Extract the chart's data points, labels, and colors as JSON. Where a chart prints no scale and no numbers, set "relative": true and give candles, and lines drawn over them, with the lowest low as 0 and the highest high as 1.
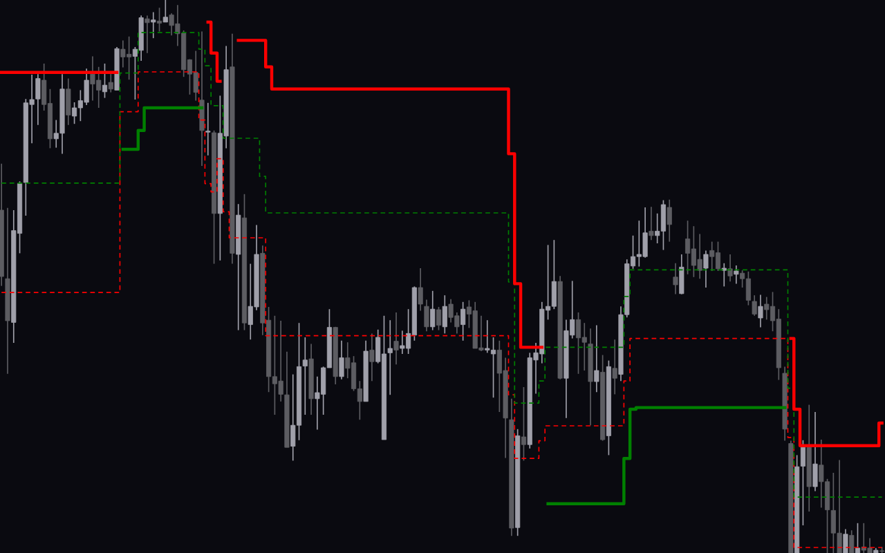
{
  "chart_data": {
    "type": "candlestick",
    "relative": true,
    "grid": false,
    "categories": [
      null,
      null,
      null,
      null,
      null,
      null,
      null,
      null,
      null,
      null,
      null,
      null,
      null,
      null,
      null,
      null,
      null,
      null,
      null,
      null,
      null,
      null,
      null,
      null,
      null,
      null,
      null,
      null,
      null,
      null,
      null,
      null,
      null,
      null,
      null,
      null,
      null,
      null,
      null,
      null,
      null,
      null,
      null,
      null,
      null,
      null,
      null,
      null,
      null,
      null,
      null,
      null,
      null,
      null,
      null,
      null,
      null,
      null,
      null,
      null,
      null,
      null,
      null,
      null,
      null,
      null,
      null,
      null,
      null,
      null,
      null,
      null,
      null,
      null,
      null,
      null,
      null,
      null,
      null,
      null,
      null,
      null,
      null,
      null,
      null,
      null,
      null,
      null,
      null,
      null,
      null,
      null,
      null,
      null,
      null,
      null,
      null,
      null,
      null,
      null,
      null,
      null,
      null,
      null,
      null,
      null,
      null,
      null,
      null,
      null,
      null,
      null,
      null,
      null,
      null,
      null,
      null,
      null,
      null,
      null,
      null,
      null,
      null,
      null,
      null,
      null,
      null,
      null,
      null,
      null,
      null,
      null,
      null,
      null,
      null,
      null,
      null,
      null,
      null,
      null,
      null,
      null,
      null,
      null,
      null,
      null
    ],
    "ohlc": [
      [
        0.62,
        0.704,
        0.483,
        0.5
      ],
      [
        0.496,
        0.624,
        0.324,
        0.42
      ],
      [
        0.417,
        0.62,
        0.38,
        0.583
      ],
      [
        0.578,
        0.672,
        0.542,
        0.668
      ],
      [
        0.67,
        0.821,
        0.61,
        0.814
      ],
      [
        0.811,
        0.865,
        0.741,
        0.82
      ],
      [
        0.821,
        0.866,
        0.774,
        0.858
      ],
      [
        0.855,
        0.885,
        0.8,
        0.811
      ],
      [
        0.813,
        0.839,
        0.732,
        0.749
      ],
      [
        0.749,
        0.783,
        0.733,
        0.759
      ],
      [
        0.759,
        0.866,
        0.722,
        0.839
      ],
      [
        0.839,
        0.858,
        0.774,
        0.792
      ],
      [
        0.79,
        0.815,
        0.776,
        0.805
      ],
      [
        0.805,
        0.837,
        0.781,
        0.818
      ],
      [
        0.815,
        0.876,
        0.81,
        0.855
      ],
      [
        0.866,
        0.898,
        0.818,
        0.848
      ],
      [
        0.855,
        0.879,
        0.805,
        0.837
      ],
      [
        0.834,
        0.885,
        0.823,
        0.846
      ],
      [
        0.851,
        0.866,
        0.833,
        0.839
      ],
      [
        0.837,
        0.915,
        0.837,
        0.912
      ],
      [
        0.911,
        0.927,
        0.878,
        0.897
      ],
      [
        0.902,
        0.934,
        0.856,
        0.897
      ],
      [
        0.898,
        0.915,
        0.82,
        0.911
      ],
      [
        0.909,
        0.972,
        0.89,
        0.968
      ],
      [
        0.966,
        0.972,
        0.904,
        0.959
      ],
      [
        0.96,
        0.978,
        0.931,
        0.964
      ],
      [
        0.962,
        0.986,
        0.943,
        0.958
      ],
      [
        0.96,
        1.0,
        0.96,
        0.969
      ],
      [
        0.973,
        0.976,
        0.936,
        0.954
      ],
      [
        0.957,
        0.991,
        0.917,
        0.939
      ],
      [
        0.94,
        0.945,
        0.861,
        0.874
      ],
      [
        0.892,
        0.893,
        0.829,
        0.866
      ],
      [
        0.869,
        0.908,
        0.818,
        0.833
      ],
      [
        0.819,
        0.943,
        0.7,
        0.764
      ],
      [
        0.763,
        0.814,
        0.719,
        0.761
      ],
      [
        0.76,
        0.764,
        0.523,
        0.614
      ],
      [
        0.614,
        0.827,
        0.529,
        0.759
      ],
      [
        0.754,
        0.917,
        0.732,
        0.874
      ],
      [
        0.879,
        0.939,
        0.523,
        0.542
      ],
      [
        0.54,
        0.631,
        0.403,
        0.611
      ],
      [
        0.606,
        0.649,
        0.403,
        0.416
      ],
      [
        0.413,
        0.523,
        0.386,
        0.446
      ],
      [
        0.445,
        0.593,
        0.439,
        0.54
      ],
      [
        0.542,
        0.556,
        0.394,
        0.416
      ],
      [
        0.421,
        0.445,
        0.291,
        0.319
      ],
      [
        0.319,
        0.429,
        0.25,
        0.306
      ],
      [
        0.311,
        0.42,
        0.274,
        0.287
      ],
      [
        0.286,
        0.364,
        0.191,
        0.191
      ],
      [
        0.193,
        0.323,
        0.167,
        0.231
      ],
      [
        0.231,
        0.416,
        0.204,
        0.337
      ],
      [
        0.338,
        0.39,
        0.25,
        0.349
      ],
      [
        0.351,
        0.378,
        0.25,
        0.279
      ],
      [
        0.279,
        0.319,
        0.223,
        0.29
      ],
      [
        0.287,
        0.337,
        0.25,
        0.335
      ],
      [
        0.335,
        0.441,
        0.335,
        0.408
      ],
      [
        0.408,
        0.409,
        0.305,
        0.319
      ],
      [
        0.319,
        0.384,
        0.314,
        0.353
      ],
      [
        0.353,
        0.381,
        0.316,
        0.334
      ],
      [
        0.344,
        0.356,
        0.293,
        0.297
      ],
      [
        0.297,
        0.311,
        0.241,
        0.274
      ],
      [
        0.274,
        0.384,
        0.274,
        0.365
      ],
      [
        0.367,
        0.397,
        0.311,
        0.346
      ],
      [
        0.346,
        0.404,
        0.343,
        0.39
      ],
      [
        0.205,
        0.429,
        0.205,
        0.36
      ],
      [
        0.362,
        0.421,
        0.286,
        0.37
      ],
      [
        0.383,
        0.435,
        0.341,
        0.367
      ],
      [
        0.37,
        0.402,
        0.36,
        0.375
      ],
      [
        0.37,
        0.441,
        0.36,
        0.397
      ],
      [
        0.394,
        0.482,
        0.384,
        0.48
      ],
      [
        0.48,
        0.515,
        0.438,
        0.45
      ],
      [
        0.446,
        0.458,
        0.401,
        0.409
      ],
      [
        0.409,
        0.474,
        0.403,
        0.441
      ],
      [
        0.44,
        0.445,
        0.403,
        0.412
      ],
      [
        0.409,
        0.466,
        0.397,
        0.446
      ],
      [
        0.45,
        0.459,
        0.417,
        0.426
      ],
      [
        0.429,
        0.435,
        0.397,
        0.409
      ],
      [
        0.413,
        0.454,
        0.384,
        0.441
      ],
      [
        0.445,
        0.457,
        0.407,
        0.432
      ],
      [
        0.438,
        0.454,
        0.37,
        0.37
      ],
      [
        0.371,
        0.429,
        0.365,
        0.367
      ],
      [
        0.367,
        0.421,
        0.362,
        0.37
      ],
      [
        0.36,
        0.39,
        0.281,
        0.367
      ],
      [
        0.367,
        0.384,
        0.255,
        0.325
      ],
      [
        0.33,
        0.353,
        0.172,
        0.244
      ],
      [
        0.241,
        0.279,
        0.031,
        0.045
      ],
      [
        0.046,
        0.224,
        0.031,
        0.212
      ],
      [
        0.21,
        0.3,
        0.167,
        0.196
      ],
      [
        0.196,
        0.362,
        0.189,
        0.353
      ],
      [
        0.349,
        0.38,
        0.288,
        0.362
      ],
      [
        0.36,
        0.454,
        0.343,
        0.441
      ],
      [
        0.439,
        0.557,
        0.422,
        0.446
      ],
      [
        0.446,
        0.566,
        0.441,
        0.491
      ],
      [
        0.491,
        0.501,
        0.314,
        0.316
      ],
      [
        0.316,
        0.422,
        0.244,
        0.402
      ],
      [
        0.394,
        0.492,
        0.388,
        0.422
      ],
      [
        0.422,
        0.435,
        0.324,
        0.389
      ],
      [
        0.39,
        0.416,
        0.33,
        0.381
      ],
      [
        0.378,
        0.406,
        0.231,
        0.31
      ],
      [
        0.31,
        0.412,
        0.291,
        0.33
      ],
      [
        0.327,
        0.358,
        0.203,
        0.205
      ],
      [
        0.212,
        0.348,
        0.177,
        0.337
      ],
      [
        0.334,
        0.386,
        0.287,
        0.316
      ],
      [
        0.323,
        0.446,
        0.311,
        0.431
      ],
      [
        0.431,
        0.531,
        0.426,
        0.523
      ],
      [
        0.519,
        0.574,
        0.514,
        0.536
      ],
      [
        0.536,
        0.601,
        0.518,
        0.54
      ],
      [
        0.536,
        0.625,
        0.534,
        0.579
      ],
      [
        0.582,
        0.626,
        0.566,
        0.574
      ],
      [
        0.574,
        0.614,
        0.56,
        0.582
      ],
      [
        0.582,
        0.638,
        0.548,
        0.63
      ],
      [
        0.625,
        0.639,
        0.563,
        0.594
      ],
      [
        0.499,
        0.524,
        0.468,
        0.485
      ],
      [
        0.469,
        0.54,
        0.468,
        0.517
      ],
      [
        0.568,
        0.601,
        0.504,
        0.542
      ],
      [
        0.55,
        0.591,
        0.499,
        0.52
      ],
      [
        0.531,
        0.577,
        0.496,
        0.511
      ],
      [
        0.515,
        0.547,
        0.48,
        0.54
      ],
      [
        0.547,
        0.563,
        0.51,
        0.536
      ],
      [
        0.543,
        0.563,
        0.51,
        0.514
      ],
      [
        0.511,
        0.524,
        0.482,
        0.515
      ],
      [
        0.514,
        0.54,
        0.491,
        0.501
      ],
      [
        0.504,
        0.52,
        0.487,
        0.51
      ],
      [
        0.506,
        0.511,
        0.48,
        0.496
      ],
      [
        0.496,
        0.509,
        0.448,
        0.457
      ],
      [
        0.455,
        0.466,
        0.429,
        0.432
      ],
      [
        0.425,
        0.467,
        0.408,
        0.446
      ],
      [
        0.45,
        0.463,
        0.422,
        0.44
      ],
      [
        0.446,
        0.472,
        0.401,
        0.42
      ],
      [
        0.423,
        0.441,
        0.313,
        0.335
      ],
      [
        0.325,
        0.337,
        0.203,
        0.224
      ],
      [
        0.198,
        0.203,
        0,
        0
      ],
      [
        0,
        0.177,
        0,
        0.156
      ],
      [
        0.157,
        0.204,
        0.05,
        0.191
      ],
      [
        0.191,
        0.268,
        0.075,
        0.12
      ],
      [
        0.12,
        0.255,
        0.112,
        0.161
      ],
      [
        0.159,
        0.205,
        0.082,
        0.129
      ],
      [
        0.129,
        0.134,
        0,
        0.078
      ],
      [
        0.077,
        0.145,
        0,
        0.036
      ],
      [
        0.036,
        0.168,
        0,
        0
      ],
      [
        0,
        0.043,
        0,
        0.034
      ],
      [
        0.032,
        0.041,
        0,
        0
      ],
      [
        0,
        0.054,
        0,
        0.009
      ],
      [
        0.011,
        0.054,
        0,
        0.005
      ],
      [
        0.009,
        0.027,
        0,
        0
      ],
      [
        0,
        0.009,
        0,
        0.005
      ],
      [
        0.004,
        0.011,
        0,
        0.003
      ]
    ],
    "colors": [
      "#5d5d62",
      "#5d5d62",
      "#a0a0aa",
      "#a0a0aa",
      "#a0a0aa",
      "#a0a0aa",
      "#a0a0aa",
      "#5d5d62",
      "#5d5d62",
      "#a0a0aa",
      "#a0a0aa",
      "#5d5d62",
      "#a0a0aa",
      "#a0a0aa",
      "#a0a0aa",
      "#5d5d62",
      "#5d5d62",
      "#a0a0aa",
      "#5d5d62",
      "#a0a0aa",
      "#5d5d62",
      "#5d5d62",
      "#a0a0aa",
      "#a0a0aa",
      "#5d5d62",
      "#a0a0aa",
      "#5d5d62",
      "#a0a0aa",
      "#5d5d62",
      "#5d5d62",
      "#5d5d62",
      "#5d5d62",
      "#5d5d62",
      "#5d5d62",
      "#a0a0aa",
      "#5d5d62",
      "#a0a0aa",
      "#a0a0aa",
      "#5d5d62",
      "#a0a0aa",
      "#5d5d62",
      "#a0a0aa",
      "#a0a0aa",
      "#5d5d62",
      "#5d5d62",
      "#5d5d62",
      "#5d5d62",
      "#5d5d62",
      "#a0a0aa",
      "#a0a0aa",
      "#a0a0aa",
      "#5d5d62",
      "#a0a0aa",
      "#a0a0aa",
      "#a0a0aa",
      "#5d5d62",
      "#a0a0aa",
      "#5d5d62",
      "#5d5d62",
      "#5d5d62",
      "#a0a0aa",
      "#5d5d62",
      "#a0a0aa",
      "#a0a0aa",
      "#a0a0aa",
      "#5d5d62",
      "#a0a0aa",
      "#a0a0aa",
      "#a0a0aa",
      "#5d5d62",
      "#5d5d62",
      "#a0a0aa",
      "#5d5d62",
      "#a0a0aa",
      "#5d5d62",
      "#5d5d62",
      "#a0a0aa",
      "#5d5d62",
      "#5d5d62",
      "#5d5d62",
      "#a0a0aa",
      "#a0a0aa",
      "#5d5d62",
      "#5d5d62",
      "#5d5d62",
      "#a0a0aa",
      "#5d5d62",
      "#a0a0aa",
      "#a0a0aa",
      "#a0a0aa",
      "#a0a0aa",
      "#a0a0aa",
      "#5d5d62",
      "#a0a0aa",
      "#a0a0aa",
      "#5d5d62",
      "#5d5d62",
      "#5d5d62",
      "#a0a0aa",
      "#5d5d62",
      "#a0a0aa",
      "#5d5d62",
      "#a0a0aa",
      "#a0a0aa",
      "#a0a0aa",
      "#a0a0aa",
      "#a0a0aa",
      "#5d5d62",
      "#a0a0aa",
      "#a0a0aa",
      "#5d5d62",
      "#5d5d62",
      "#a0a0aa",
      "#5d5d62",
      "#5d5d62",
      "#5d5d62",
      "#a0a0aa",
      "#5d5d62",
      "#5d5d62",
      "#a0a0aa",
      "#5d5d62",
      "#a0a0aa",
      "#5d5d62",
      "#5d5d62",
      "#5d5d62",
      "#a0a0aa",
      "#5d5d62",
      "#5d5d62",
      "#5d5d62",
      "#5d5d62",
      "#5d5d62",
      "#a0a0aa",
      "#a0a0aa",
      "#5d5d62",
      "#a0a0aa",
      "#5d5d62",
      "#5d5d62",
      "#5d5d62",
      "#5d5d62",
      "#a0a0aa",
      "#5d5d62",
      "#a0a0aa",
      "#5d5d62",
      "#5d5d62",
      "#a0a0aa",
      "#5d5d62"
    ],
    "series": [
      {
        "type": "step",
        "color": "#ff0000",
        "line_style": "dashed",
        "values": [
          0.471,
          0.471,
          0.471,
          0.471,
          0.471,
          0.471,
          0.471,
          0.471,
          0.471,
          0.471,
          0.471,
          0.471,
          0.471,
          0.471,
          0.471,
          0.471,
          0.471,
          0.471,
          0.471,
          0.471,
          0.798,
          0.798,
          0.798,
          0.87,
          0.87,
          0.87,
          0.87,
          0.87,
          0.87,
          0.87,
          0.87,
          0.87,
          0.87,
          0.783,
          0.668,
          0.653,
          0.713,
          0.617,
          0.57,
          0.57,
          0.57,
          0.57,
          0.57,
          0.57,
          0.393,
          0.393,
          0.393,
          0.393,
          0.393,
          0.393,
          0.393,
          0.393,
          0.393,
          0.393,
          0.393,
          0.393,
          0.393,
          0.393,
          0.393,
          0.393,
          0.393,
          0.393,
          0.393,
          0.393,
          0.393,
          0.393,
          0.393,
          0.393,
          0.393,
          0.393,
          0.393,
          0.393,
          0.393,
          0.393,
          0.393,
          0.393,
          0.393,
          0.393,
          0.393,
          0.393,
          0.393,
          0.393,
          0.393,
          0.393,
          0.286,
          0.171,
          0.171,
          0.171,
          0.171,
          0.203,
          0.23,
          0.23,
          0.23,
          0.23,
          0.23,
          0.23,
          0.23,
          0.23,
          0.23,
          0.23,
          0.23,
          0.23,
          0.23,
          0.311,
          0.388,
          0.388,
          0.388,
          0.388,
          0.388,
          0.388,
          0.388,
          0.388,
          0.388,
          0.388,
          0.388,
          0.388,
          0.388,
          0.388,
          0.388,
          0.388,
          0.388,
          0.388,
          0.388,
          0.388,
          0.388,
          0.388,
          0.388,
          0.388,
          0.388,
          0.388,
          0.209,
          0.01,
          0.01,
          0.01,
          0.01,
          0.01,
          0.01,
          0.01,
          0.01,
          0.01,
          0.01,
          0.01,
          0.01,
          0.01,
          0.01,
          0.01
        ]
      },
      {
        "type": "step",
        "color": "#008000",
        "line_style": "dashed",
        "values": [
          0.669,
          0.669,
          0.669,
          0.669,
          0.669,
          0.669,
          0.669,
          0.669,
          0.669,
          0.669,
          0.669,
          0.669,
          0.669,
          0.669,
          0.669,
          0.669,
          0.669,
          0.669,
          0.669,
          0.669,
          0.868,
          0.868,
          0.868,
          0.941,
          0.941,
          0.941,
          0.941,
          0.941,
          0.941,
          0.941,
          0.941,
          0.941,
          0.941,
          0.911,
          0.881,
          0.809,
          0.809,
          0.75,
          0.75,
          0.75,
          0.75,
          0.75,
          0.75,
          0.681,
          0.615,
          0.615,
          0.615,
          0.615,
          0.615,
          0.615,
          0.615,
          0.615,
          0.615,
          0.615,
          0.615,
          0.615,
          0.615,
          0.615,
          0.615,
          0.615,
          0.615,
          0.615,
          0.615,
          0.615,
          0.615,
          0.615,
          0.615,
          0.615,
          0.615,
          0.615,
          0.615,
          0.615,
          0.615,
          0.615,
          0.615,
          0.615,
          0.615,
          0.615,
          0.615,
          0.615,
          0.615,
          0.615,
          0.615,
          0.615,
          0.49,
          0.271,
          0.271,
          0.271,
          0.271,
          0.311,
          0.372,
          0.372,
          0.372,
          0.372,
          0.372,
          0.372,
          0.372,
          0.372,
          0.372,
          0.372,
          0.372,
          0.372,
          0.372,
          0.464,
          0.512,
          0.512,
          0.512,
          0.512,
          0.512,
          0.512,
          0.512,
          0.512,
          0.512,
          0.512,
          0.512,
          0.512,
          0.512,
          0.512,
          0.512,
          0.512,
          0.512,
          0.512,
          0.512,
          0.512,
          0.512,
          0.512,
          0.512,
          0.512,
          0.512,
          0.512,
          0.298,
          0.101,
          0.101,
          0.101,
          0.101,
          0.101,
          0.101,
          0.101,
          0.101,
          0.101,
          0.101,
          0.101,
          0.101,
          0.101,
          0.101,
          0.101
        ]
      },
      {
        "type": "step",
        "color": "#ff0000",
        "line_style": "solid",
        "values": [
          0.869,
          0.869,
          0.869,
          0.869,
          0.869,
          0.869,
          0.869,
          0.869,
          0.869,
          0.869,
          0.869,
          0.869,
          0.869,
          0.869,
          0.869,
          0.869,
          0.869,
          0.869,
          0.869,
          0.869,
          null,
          null,
          null,
          null,
          null,
          null,
          null,
          null,
          null,
          null,
          null,
          null,
          null,
          null,
          0.96,
          0.904,
          0.853,
          null,
          null,
          0.927,
          0.927,
          0.927,
          0.927,
          0.927,
          0.879,
          0.839,
          0.839,
          0.839,
          0.839,
          0.839,
          0.839,
          0.839,
          0.839,
          0.839,
          0.839,
          0.839,
          0.839,
          0.839,
          0.839,
          0.839,
          0.839,
          0.839,
          0.839,
          0.839,
          0.839,
          0.839,
          0.839,
          0.839,
          0.839,
          0.839,
          0.839,
          0.839,
          0.839,
          0.839,
          0.839,
          0.839,
          0.839,
          0.839,
          0.839,
          0.839,
          0.839,
          0.839,
          0.839,
          0.839,
          0.722,
          0.487,
          0.372,
          0.372,
          0.372,
          0.372,
          null,
          null,
          null,
          null,
          null,
          null,
          null,
          null,
          null,
          null,
          null,
          null,
          null,
          null,
          null,
          null,
          null,
          null,
          null,
          null,
          null,
          null,
          null,
          null,
          null,
          null,
          null,
          null,
          null,
          null,
          null,
          null,
          null,
          null,
          null,
          null,
          null,
          null,
          null,
          null,
          0.388,
          0.26,
          0.194,
          0.194,
          0.194,
          0.194,
          0.194,
          0.194,
          0.194,
          0.194,
          0.194,
          0.194,
          0.194,
          0.194,
          0.194,
          0.235
        ]
      },
      {
        "type": "step",
        "color": "#008000",
        "line_style": "solid",
        "values": [
          null,
          null,
          null,
          null,
          null,
          null,
          null,
          null,
          null,
          null,
          null,
          null,
          null,
          null,
          null,
          null,
          null,
          null,
          null,
          null,
          0.73,
          0.73,
          0.73,
          0.764,
          0.805,
          0.805,
          0.805,
          0.805,
          0.805,
          0.805,
          0.805,
          0.805,
          0.805,
          0.805,
          null,
          null,
          null,
          null,
          null,
          null,
          null,
          null,
          null,
          null,
          null,
          null,
          null,
          null,
          null,
          null,
          null,
          null,
          null,
          null,
          null,
          null,
          null,
          null,
          null,
          null,
          null,
          null,
          null,
          null,
          null,
          null,
          null,
          null,
          null,
          null,
          null,
          null,
          null,
          null,
          null,
          null,
          null,
          null,
          null,
          null,
          null,
          null,
          null,
          null,
          null,
          null,
          null,
          null,
          null,
          null,
          0.089,
          0.089,
          0.089,
          0.089,
          0.089,
          0.089,
          0.089,
          0.089,
          0.089,
          0.089,
          0.089,
          0.089,
          0.089,
          0.171,
          0.26,
          0.263,
          0.263,
          0.263,
          0.263,
          0.263,
          0.263,
          0.263,
          0.263,
          0.263,
          0.263,
          0.263,
          0.263,
          0.263,
          0.263,
          0.263,
          0.263,
          0.263,
          0.263,
          0.263,
          0.263,
          0.263,
          0.263,
          0.263,
          0.263,
          0.263,
          null,
          null,
          null,
          null,
          null,
          null,
          null,
          null,
          null,
          null,
          null,
          null,
          null,
          null,
          null,
          null
        ]
      }
    ]
  }
}
